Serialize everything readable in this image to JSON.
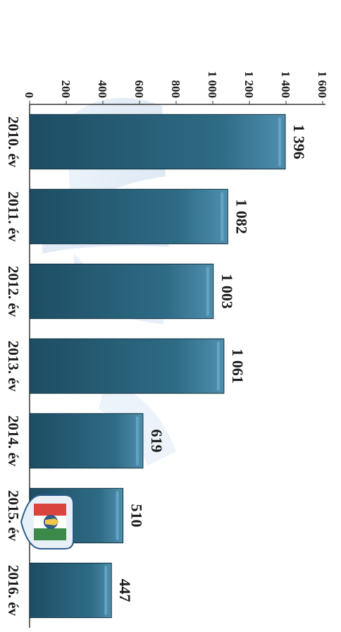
{
  "chart_data": {
    "type": "bar",
    "orientation": "rotated-90-clockwise",
    "categories": [
      "2010. év",
      "2011. év",
      "2012. év",
      "2013. év",
      "2014. év",
      "2015. év",
      "2016. év"
    ],
    "values": [
      1396,
      1082,
      1003,
      1061,
      619,
      510,
      447
    ],
    "value_labels": [
      "1 396",
      "1 082",
      "1 003",
      "1 061",
      "619",
      "510",
      "447"
    ],
    "ylim": [
      0,
      1600
    ],
    "yticks": [
      0,
      200,
      400,
      600,
      800,
      1000,
      1200,
      1400,
      1600
    ],
    "ytick_labels": [
      "0",
      "200",
      "400",
      "600",
      "800",
      "1 000",
      "1 200",
      "1 400",
      "1 600"
    ],
    "grid": false,
    "legend": "none",
    "colors": {
      "bar": "#2e6b85",
      "bar_edge": "#0f2f3f",
      "bar_highlight": "#6fb0cf",
      "axis": "#333333",
      "watermark": "#b9d3ea"
    },
    "icons": {
      "logo": "police-emblem-icon",
      "watermark": "lighthouse-watermark-icon"
    }
  }
}
